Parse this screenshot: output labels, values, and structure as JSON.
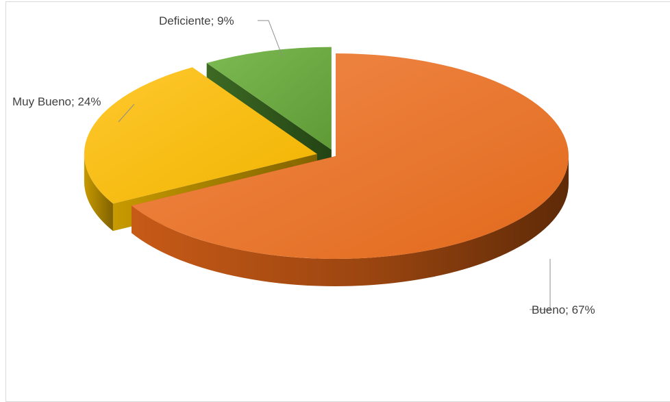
{
  "chart_data": {
    "type": "pie",
    "style": "3d-exploded",
    "categories": [
      "Bueno",
      "Muy Bueno",
      "Deficiente"
    ],
    "values": [
      67,
      24,
      9
    ],
    "labels": [
      "Bueno; 67%",
      "Muy Bueno; 24%",
      "Deficiente; 9%"
    ],
    "colors": [
      "#ED7D31",
      "#FFC000",
      "#70AD47"
    ],
    "legend": "none",
    "title": ""
  }
}
